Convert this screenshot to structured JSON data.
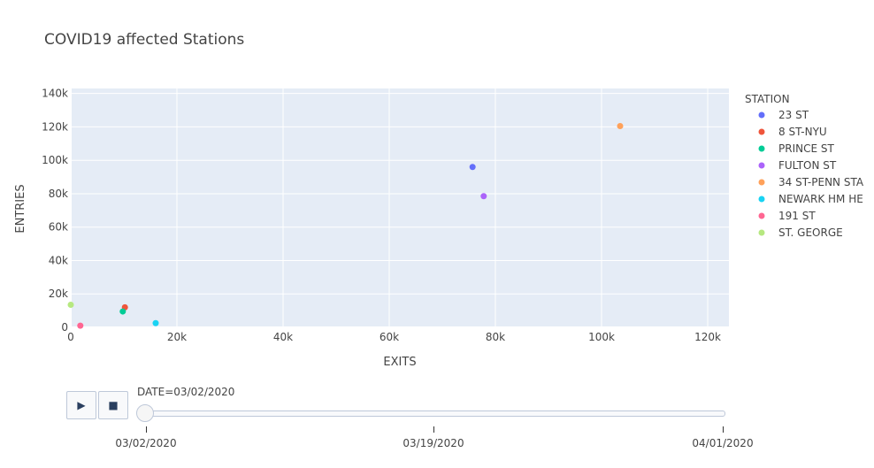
{
  "chart_data": {
    "type": "scatter",
    "title": "COVID19 affected Stations",
    "xlabel": "EXITS",
    "ylabel": "ENTRIES",
    "xlim": [
      0,
      124000
    ],
    "ylim": [
      0,
      143000
    ],
    "x_ticks": [
      0,
      20000,
      40000,
      60000,
      80000,
      100000,
      120000
    ],
    "x_tick_labels": [
      "0",
      "20k",
      "40k",
      "60k",
      "80k",
      "100k",
      "120k"
    ],
    "y_ticks": [
      0,
      20000,
      40000,
      60000,
      80000,
      100000,
      120000,
      140000
    ],
    "y_tick_labels": [
      "0",
      "20k",
      "40k",
      "60k",
      "80k",
      "100k",
      "120k",
      "140k"
    ],
    "grid": true,
    "legend_title": "STATION",
    "legend_position": "right",
    "series": [
      {
        "name": "23 ST",
        "color": "#636efa",
        "x": [
          75700
        ],
        "y": [
          96000
        ]
      },
      {
        "name": "8 ST-NYU",
        "color": "#EF553B",
        "x": [
          10200
        ],
        "y": [
          12000
        ]
      },
      {
        "name": "PRINCE ST",
        "color": "#00cc96",
        "x": [
          9800
        ],
        "y": [
          9500
        ]
      },
      {
        "name": "FULTON ST",
        "color": "#ab63fa",
        "x": [
          77800
        ],
        "y": [
          78500
        ]
      },
      {
        "name": "34 ST-PENN STA",
        "color": "#FFA15A",
        "x": [
          103500
        ],
        "y": [
          120500
        ]
      },
      {
        "name": "NEWARK HM HE",
        "color": "#19d3f3",
        "x": [
          16000
        ],
        "y": [
          2500
        ]
      },
      {
        "name": "191 ST",
        "color": "#FF6692",
        "x": [
          1800
        ],
        "y": [
          1000
        ]
      },
      {
        "name": "ST. GEORGE",
        "color": "#B6E880",
        "x": [
          0
        ],
        "y": [
          13500
        ]
      }
    ]
  },
  "animation": {
    "current_label": "DATE=03/02/2020",
    "play_icon": "play-icon",
    "stop_icon": "stop-icon",
    "steps": [
      "03/02/2020",
      "03/19/2020",
      "04/01/2020"
    ],
    "current_step": 0
  }
}
